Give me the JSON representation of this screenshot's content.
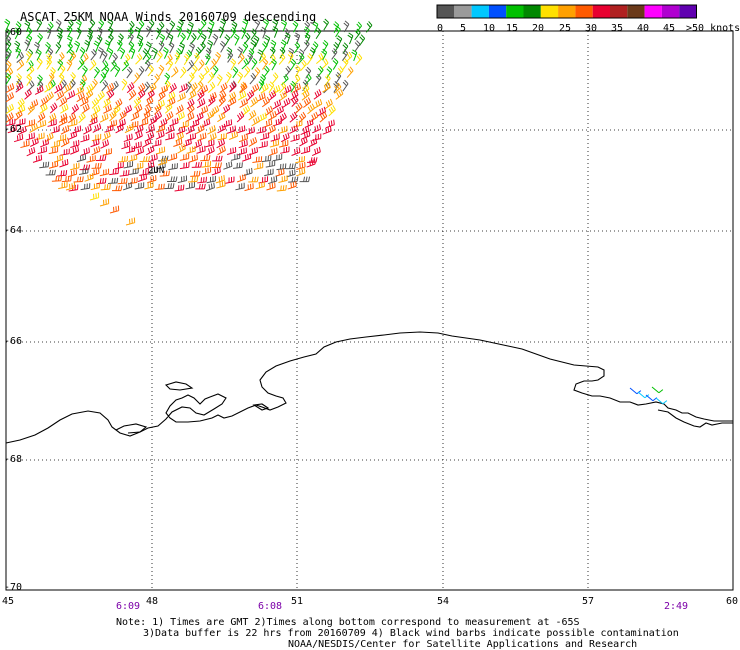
{
  "title": "ASCAT 25KM NOAA Winds 20160709 descending",
  "legend": {
    "colors": [
      "#555555",
      "#9a9a9a",
      "#00c8ff",
      "#0050ff",
      "#00c000",
      "#008800",
      "#ffe000",
      "#ffa000",
      "#ff5a00",
      "#e80030",
      "#b02020",
      "#6b3a1a",
      "#ff00ff",
      "#b000d0",
      "#6000b0"
    ],
    "labels": [
      "0",
      "5",
      "10",
      "15",
      "20",
      "25",
      "30",
      "35",
      "40",
      "45",
      ">50 knots"
    ]
  },
  "map": {
    "lon_ticks": [
      "45",
      "48",
      "51",
      "54",
      "57",
      "60"
    ],
    "lat_ticks": [
      "-60",
      "-62",
      "-64",
      "-66",
      "-68",
      "-70"
    ],
    "time_labels": [
      "6:09",
      "6:08",
      "2:49"
    ],
    "time_color": "#7b00a8",
    "grid": true,
    "coastline_color": "#000000",
    "contamination_label": "2UN"
  },
  "notes": {
    "line1": "Note: 1) Times are GMT 2)Times along bottom correspond to measurement at -65S",
    "line2": "3)Data buffer is 22 hrs from 20160709 4) Black wind barbs indicate possible contamination",
    "line3": "NOAA/NESDIS/Center for Satellite Applications and Research"
  }
}
